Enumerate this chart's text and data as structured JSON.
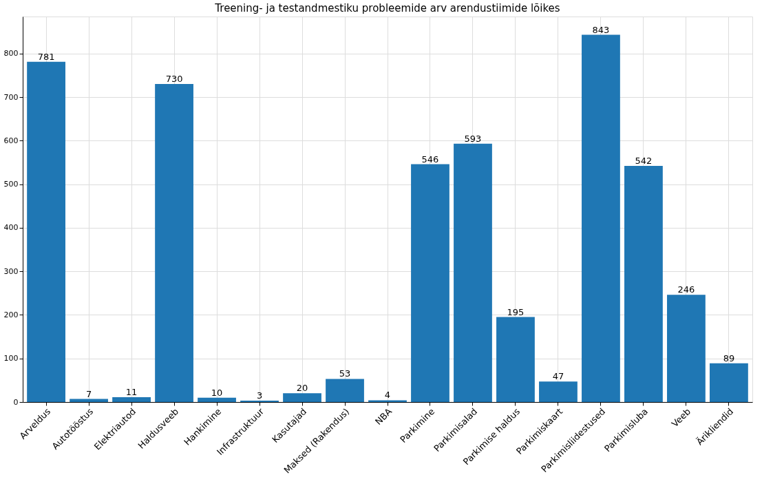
{
  "chart_data": {
    "type": "bar",
    "title": "Treening- ja testandmestiku probleemide arv arendustiimide lõikes",
    "categories": [
      "Arveldus",
      "Autotööstus",
      "Elektriautod",
      "Haldusveeb",
      "Hankimine",
      "Infrastruktuur",
      "Kasutajad",
      "Maksed (Rakendus)",
      "NBA",
      "Parkimine",
      "Parkimisalad",
      "Parkimise haldus",
      "Parkimiskaart",
      "Parkimisliidestused",
      "Parkimisluba",
      "Veeb",
      "Ärikliendid"
    ],
    "values": [
      781,
      7,
      11,
      730,
      10,
      3,
      20,
      53,
      4,
      546,
      593,
      195,
      47,
      843,
      542,
      246,
      89
    ],
    "color": "#1f77b4",
    "ylim": [
      0,
      885
    ],
    "yticks": [
      0,
      100,
      200,
      300,
      400,
      500,
      600,
      700,
      800
    ],
    "grid": true,
    "data_labels": true
  }
}
